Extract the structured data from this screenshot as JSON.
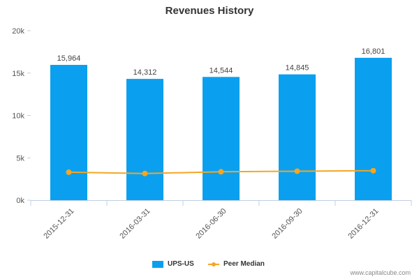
{
  "chart_data": {
    "type": "bar",
    "title": "Revenues History",
    "categories": [
      "2015-12-31",
      "2016-03-31",
      "2016-06-30",
      "2016-09-30",
      "2016-12-31"
    ],
    "series": [
      {
        "name": "UPS-US",
        "type": "bar",
        "color": "#0AA0EF",
        "values": [
          15964,
          14312,
          14544,
          14845,
          16801
        ]
      },
      {
        "name": "Peer Median",
        "type": "line",
        "color": "#F5A623",
        "values": [
          3300,
          3150,
          3350,
          3420,
          3480
        ]
      }
    ],
    "data_labels": [
      "15,964",
      "14,312",
      "14,544",
      "14,845",
      "16,801"
    ],
    "ylim": [
      0,
      20000
    ],
    "yticks": [
      0,
      5000,
      10000,
      15000,
      20000
    ],
    "ytick_labels": [
      "0k",
      "5k",
      "10k",
      "15k",
      "20k"
    ],
    "grid": false,
    "legend": "bottom-center"
  },
  "footer": {
    "source": "www.capitalcube.com"
  }
}
